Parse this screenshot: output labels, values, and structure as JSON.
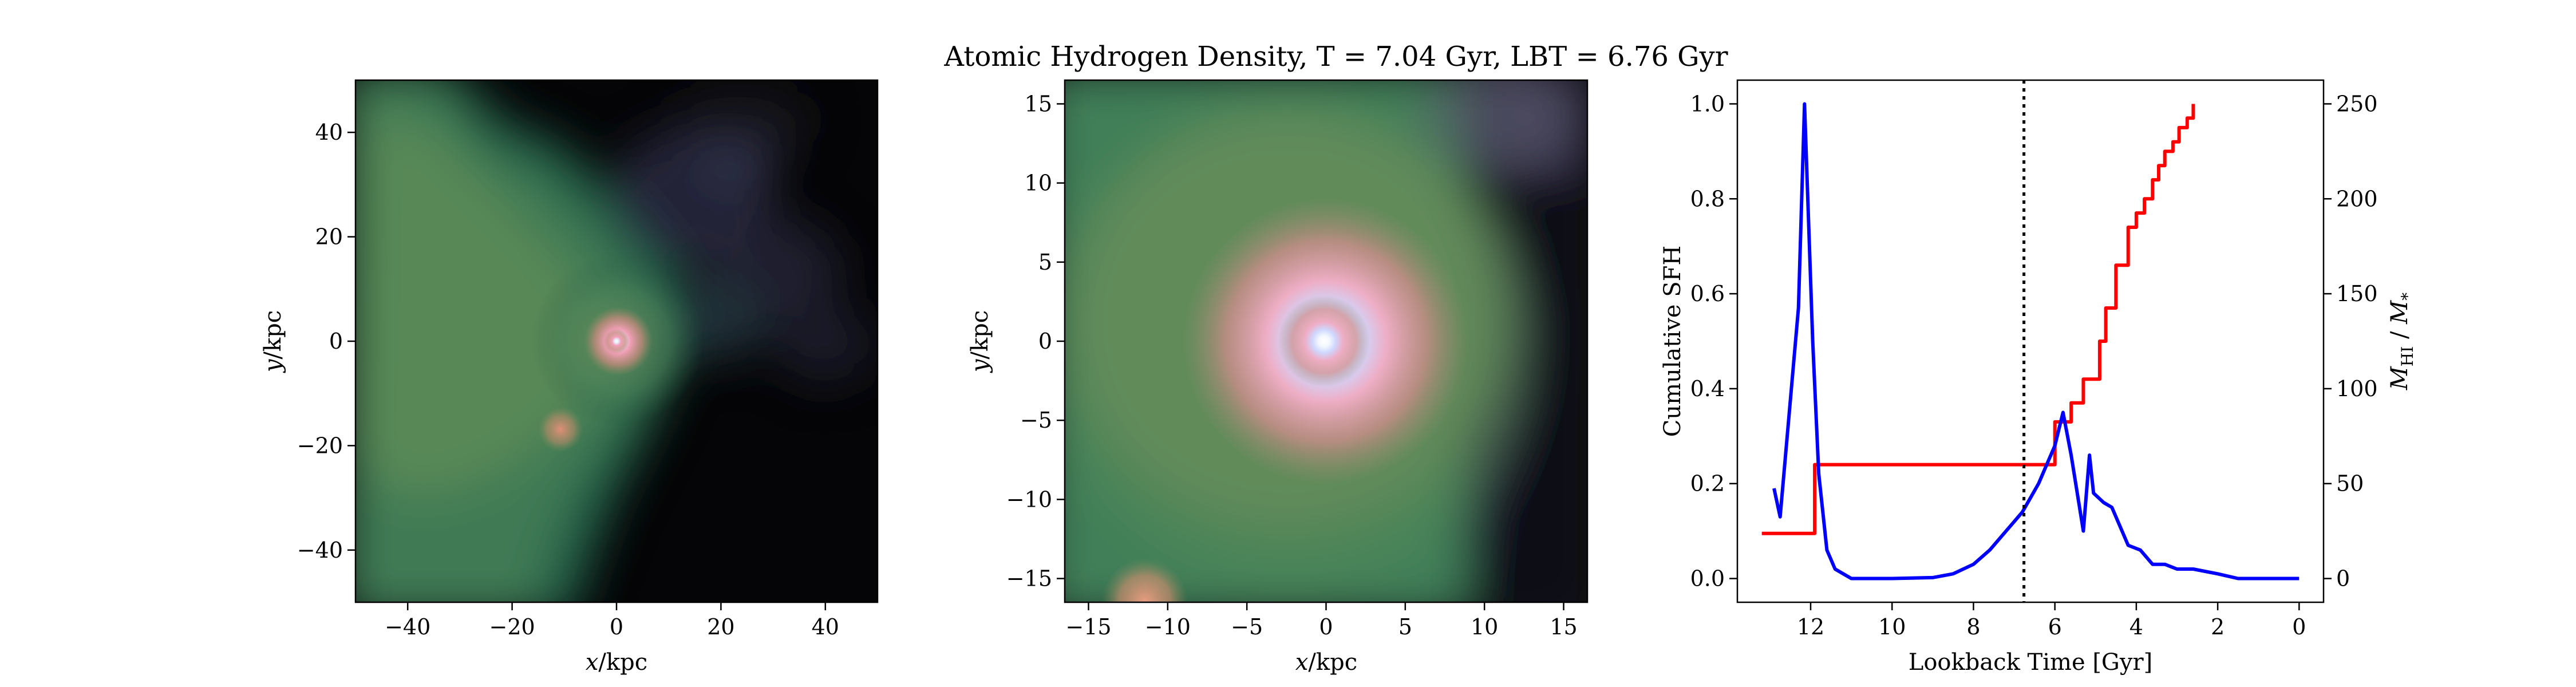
{
  "figure": {
    "title": "Atomic Hydrogen Density, T = 7.04 Gyr, LBT = 6.76 Gyr"
  },
  "chart_data": [
    {
      "type": "heatmap",
      "title": "",
      "xlabel_var": "x",
      "ylabel_var": "y",
      "unit": "/kpc",
      "xlim": [
        -50,
        50
      ],
      "ylim": [
        -50,
        50
      ],
      "x_ticks": [
        -40,
        -20,
        0,
        20,
        40
      ],
      "y_ticks": [
        -40,
        -20,
        0,
        20,
        40
      ],
      "colormap": "cubehelix-like (black-purple-green-pink-white)",
      "features": [
        {
          "name": "main-core",
          "x": 0,
          "y": 0
        },
        {
          "name": "satellite",
          "x": -11,
          "y": -17
        }
      ]
    },
    {
      "type": "heatmap",
      "title": "",
      "xlabel_var": "x",
      "ylabel_var": "y",
      "unit": "/kpc",
      "xlim": [
        -16.5,
        16.5
      ],
      "ylim": [
        -16.5,
        16.5
      ],
      "x_ticks": [
        -15,
        -10,
        -5,
        0,
        5,
        10,
        15
      ],
      "y_ticks": [
        -15,
        -10,
        -5,
        0,
        5,
        10,
        15
      ],
      "colormap": "cubehelix-like (black-purple-green-pink-white)",
      "features": [
        {
          "name": "main-core",
          "x": 0,
          "y": 0
        },
        {
          "name": "satellite-edge",
          "x": -11.5,
          "y": -16
        }
      ]
    },
    {
      "type": "line",
      "title": "",
      "xlabel": "Lookback Time [Gyr]",
      "ylabel_left": "Cumulative SFH",
      "ylabel_right_main": "M",
      "ylabel_right_main_sub": "HI",
      "ylabel_right_sep": " / ",
      "ylabel_right_den": "M",
      "ylabel_right_den_sub": "*",
      "xlim": [
        13.8,
        -0.6
      ],
      "ylim_left": [
        -0.05,
        1.05
      ],
      "ylim_right": [
        -12.5,
        262.5
      ],
      "x_ticks": [
        12,
        10,
        8,
        6,
        4,
        2,
        0
      ],
      "y_ticks_left": [
        "0.0",
        "0.2",
        "0.4",
        "0.6",
        "0.8",
        "1.0"
      ],
      "y_ticks_right": [
        0,
        50,
        100,
        150,
        200,
        250
      ],
      "vline": {
        "x": 6.76,
        "style": "dotted",
        "color": "#000000"
      },
      "series": [
        {
          "axis": "left",
          "color": "#ff0000",
          "step": true,
          "x": [
            13.2,
            12.1,
            11.9,
            6.1,
            6.0,
            5.6,
            5.3,
            4.9,
            4.75,
            4.5,
            4.2,
            4.0,
            3.8,
            3.6,
            3.45,
            3.3,
            3.1,
            2.95,
            2.75,
            2.6
          ],
          "y": [
            0.095,
            0.095,
            0.24,
            0.24,
            0.33,
            0.37,
            0.42,
            0.5,
            0.57,
            0.66,
            0.74,
            0.77,
            0.8,
            0.84,
            0.87,
            0.9,
            0.92,
            0.95,
            0.97,
            1.0
          ]
        },
        {
          "axis": "left",
          "color": "#0000ff",
          "step": false,
          "x": [
            12.9,
            12.75,
            12.3,
            12.15,
            11.95,
            11.8,
            11.6,
            11.4,
            11.0,
            10.0,
            9.0,
            8.5,
            8.0,
            7.6,
            7.3,
            7.0,
            6.8,
            6.6,
            6.4,
            6.2,
            6.0,
            5.8,
            5.6,
            5.3,
            5.15,
            5.05,
            4.8,
            4.6,
            4.2,
            3.9,
            3.6,
            3.3,
            3.0,
            2.6,
            2.0,
            1.5,
            1.0,
            0.0
          ],
          "y": [
            0.19,
            0.13,
            0.57,
            1.0,
            0.5,
            0.22,
            0.06,
            0.02,
            0.0,
            0.0,
            0.002,
            0.01,
            0.03,
            0.06,
            0.09,
            0.12,
            0.14,
            0.17,
            0.2,
            0.24,
            0.28,
            0.35,
            0.26,
            0.1,
            0.26,
            0.18,
            0.16,
            0.15,
            0.07,
            0.06,
            0.03,
            0.03,
            0.02,
            0.02,
            0.01,
            0.0,
            0.0,
            0.0
          ]
        }
      ]
    }
  ]
}
